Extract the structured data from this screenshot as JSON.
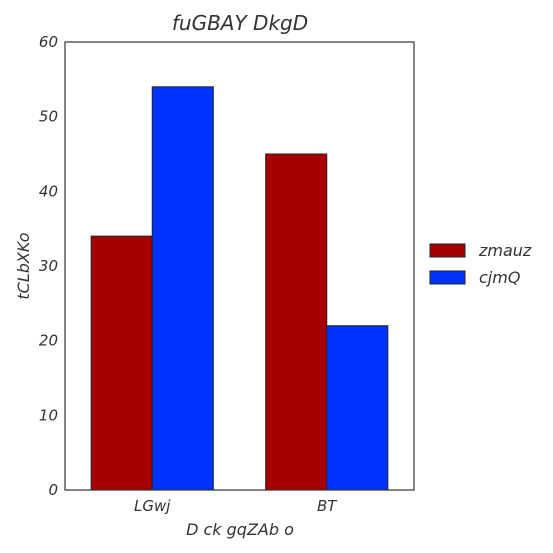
{
  "chart_data": {
    "type": "bar",
    "title": "fuGBAY DkgD",
    "xlabel": "D ck gqZAb  o",
    "ylabel": "tCLbXKo",
    "categories": [
      "LGwj",
      "BT"
    ],
    "series": [
      {
        "name": "zmauz",
        "values": [
          34,
          45
        ],
        "color": "#a80000"
      },
      {
        "name": "cjmQ",
        "values": [
          54,
          22
        ],
        "color": "#0033ff"
      }
    ],
    "ylim": [
      0,
      60
    ],
    "yticks": [
      "0",
      "10",
      "20",
      "30",
      "40",
      "50",
      "60"
    ],
    "grid": false,
    "legend_position": "right"
  }
}
